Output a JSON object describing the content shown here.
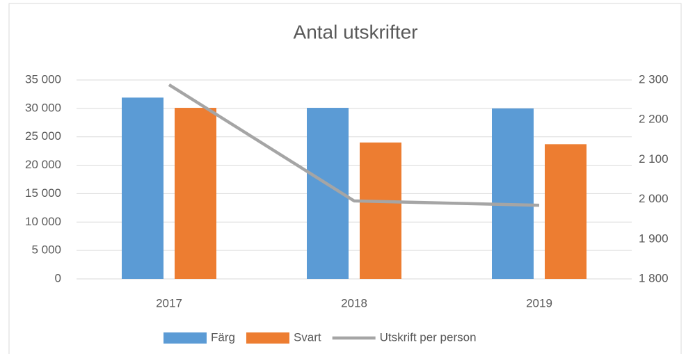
{
  "chart_data": {
    "type": "bar",
    "title": "Antal utskrifter",
    "categories": [
      "2017",
      "2018",
      "2019"
    ],
    "series": [
      {
        "name": "Färg",
        "color": "#5b9bd5",
        "values": [
          31900,
          30100,
          30000
        ]
      },
      {
        "name": "Svart",
        "color": "#ed7d31",
        "values": [
          30100,
          24000,
          23700
        ]
      },
      {
        "name": "Utskrift per person",
        "color": "#a5a5a5",
        "type": "line",
        "axis": "y2",
        "values": [
          2288,
          1996,
          1985
        ]
      }
    ],
    "ylim": [
      0,
      35000
    ],
    "yticks": [
      0,
      {
        "value": 5000,
        "label": "5 000"
      },
      {
        "value": 10000,
        "label": "10 000"
      },
      {
        "value": 15000,
        "label": "15 000"
      },
      {
        "value": 20000,
        "label": "20 000"
      },
      {
        "value": 25000,
        "label": "25 000"
      },
      {
        "value": 30000,
        "label": "30 000"
      },
      {
        "value": 35000,
        "label": "35 000"
      }
    ],
    "y2lim": [
      1800,
      2300
    ],
    "y2ticks": [
      {
        "value": 1800,
        "label": "1 800"
      },
      {
        "value": 1900,
        "label": "1 900"
      },
      {
        "value": 2000,
        "label": "2 000"
      },
      {
        "value": 2100,
        "label": "2 100"
      },
      {
        "value": 2200,
        "label": "2 200"
      },
      {
        "value": 2300,
        "label": "2 300"
      }
    ],
    "grid": true,
    "legend": "bottom"
  }
}
